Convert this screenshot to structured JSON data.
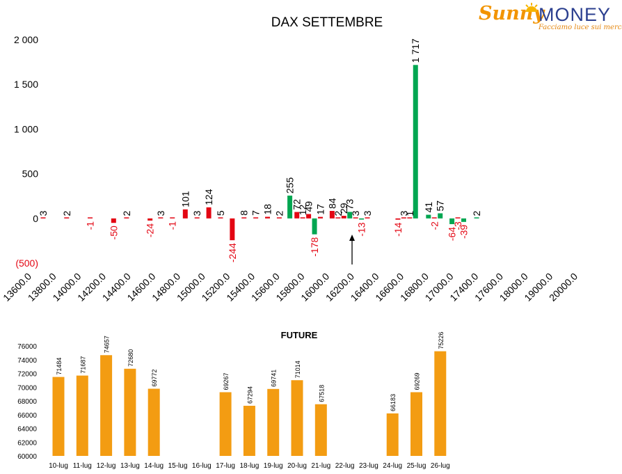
{
  "logo": {
    "brand_a": "Sunny",
    "brand_b": "MONEY",
    "tagline": "Facciamo luce sui mercati",
    "colors": {
      "sunny": "#f29400",
      "money": "#2b3f8f"
    }
  },
  "chart_data": [
    {
      "type": "bar",
      "title": "DAX SETTEMBRE",
      "ylim": [
        -500,
        2000
      ],
      "y_ticks": [
        {
          "v": 2000,
          "label": "2 000"
        },
        {
          "v": 1500,
          "label": "1 500"
        },
        {
          "v": 1000,
          "label": "1 000"
        },
        {
          "v": 500,
          "label": "500"
        },
        {
          "v": 0,
          "label": "0"
        },
        {
          "v": -500,
          "label": "(500)"
        }
      ],
      "categories": [
        "13600.0",
        "13800.0",
        "14000.0",
        "14200.0",
        "14400.0",
        "14600.0",
        "14800.0",
        "15000.0",
        "15200.0",
        "15400.0",
        "15600.0",
        "15800.0",
        "16000.0",
        "16200.0",
        "16400.0",
        "16600.0",
        "16800.0",
        "17000.0",
        "17400.0",
        "17600.0",
        "18000.0",
        "19000.0",
        "20000.0"
      ],
      "colors": {
        "positive_strike": "#e30613",
        "call_wall": "#00a651"
      },
      "bars": [
        {
          "x": 0.0,
          "v": 3,
          "label": "3",
          "c": "red"
        },
        {
          "x": 1.0,
          "v": 2,
          "label": "2",
          "c": "red"
        },
        {
          "x": 2.0,
          "v": -1,
          "label": "-1",
          "c": "red"
        },
        {
          "x": 3.0,
          "v": -50,
          "label": "-50",
          "c": "red"
        },
        {
          "x": 3.55,
          "v": 2,
          "label": "2",
          "c": "red"
        },
        {
          "x": 4.55,
          "v": -24,
          "label": "-24",
          "c": "red"
        },
        {
          "x": 5.0,
          "v": 3,
          "label": "3",
          "c": "red"
        },
        {
          "x": 5.5,
          "v": -1,
          "label": "-1",
          "c": "red"
        },
        {
          "x": 6.05,
          "v": 101,
          "label": "101",
          "c": "red"
        },
        {
          "x": 6.55,
          "v": 3,
          "label": "3",
          "c": "red"
        },
        {
          "x": 7.05,
          "v": 124,
          "label": "124",
          "c": "red"
        },
        {
          "x": 7.55,
          "v": 5,
          "label": "5",
          "c": "red"
        },
        {
          "x": 8.05,
          "v": -244,
          "label": "-244",
          "c": "red"
        },
        {
          "x": 8.55,
          "v": 8,
          "label": "8",
          "c": "red"
        },
        {
          "x": 9.05,
          "v": 7,
          "label": "7",
          "c": "red"
        },
        {
          "x": 9.55,
          "v": 18,
          "label": "18",
          "c": "red"
        },
        {
          "x": 10.05,
          "v": 2,
          "label": "2",
          "c": "red"
        },
        {
          "x": 10.5,
          "v": 255,
          "label": "255",
          "c": "green"
        },
        {
          "x": 10.8,
          "v": 72,
          "label": "72",
          "c": "red"
        },
        {
          "x": 11.05,
          "v": 12,
          "label": "12",
          "c": "red"
        },
        {
          "x": 11.3,
          "v": 49,
          "label": "49",
          "c": "red"
        },
        {
          "x": 11.55,
          "v": -178,
          "label": "-178",
          "c": "green"
        },
        {
          "x": 11.8,
          "v": 17,
          "label": "17",
          "c": "red"
        },
        {
          "x": 12.3,
          "v": 84,
          "label": "84",
          "c": "red"
        },
        {
          "x": 12.55,
          "v": 2,
          "label": "2",
          "c": "red"
        },
        {
          "x": 12.8,
          "v": 29,
          "label": "29",
          "c": "red"
        },
        {
          "x": 13.05,
          "v": 73,
          "label": "73",
          "c": "green"
        },
        {
          "x": 13.3,
          "v": 3,
          "label": "3",
          "c": "red"
        },
        {
          "x": 13.55,
          "v": -13,
          "label": "-13",
          "c": "green"
        },
        {
          "x": 13.8,
          "v": 3,
          "label": "3",
          "c": "red"
        },
        {
          "x": 15.1,
          "v": -14,
          "label": "-14",
          "c": "red"
        },
        {
          "x": 15.35,
          "v": 3,
          "label": "3",
          "c": "red"
        },
        {
          "x": 15.6,
          "v": 1,
          "label": "1",
          "c": "red"
        },
        {
          "x": 15.85,
          "v": 1717,
          "label": "1 717",
          "c": "green"
        },
        {
          "x": 16.4,
          "v": 41,
          "label": "41",
          "c": "green"
        },
        {
          "x": 16.65,
          "v": -2,
          "label": "-2",
          "c": "red"
        },
        {
          "x": 16.9,
          "v": 57,
          "label": "57",
          "c": "green"
        },
        {
          "x": 17.4,
          "v": -64,
          "label": "-64",
          "c": "green"
        },
        {
          "x": 17.65,
          "v": -3,
          "label": "-3",
          "c": "red"
        },
        {
          "x": 17.9,
          "v": -39,
          "label": "-39",
          "c": "green"
        },
        {
          "x": 18.45,
          "v": 2,
          "label": "2",
          "c": "green"
        }
      ],
      "arrow_at_x": 13.0
    },
    {
      "type": "bar",
      "title": "FUTURE",
      "ylim": [
        60000,
        76000
      ],
      "y_ticks": [
        60000,
        62000,
        64000,
        66000,
        68000,
        70000,
        72000,
        74000,
        76000
      ],
      "categories": [
        "10-lug",
        "11-lug",
        "12-lug",
        "13-lug",
        "14-lug",
        "15-lug",
        "16-lug",
        "17-lug",
        "18-lug",
        "19-lug",
        "20-lug",
        "21-lug",
        "22-lug",
        "23-lug",
        "24-lug",
        "25-lug",
        "26-lug"
      ],
      "values": [
        71484,
        71687,
        74657,
        72680,
        69772,
        null,
        null,
        69267,
        67294,
        69741,
        71014,
        67518,
        null,
        null,
        66183,
        69269,
        75226
      ],
      "color": "#f39c12"
    }
  ]
}
